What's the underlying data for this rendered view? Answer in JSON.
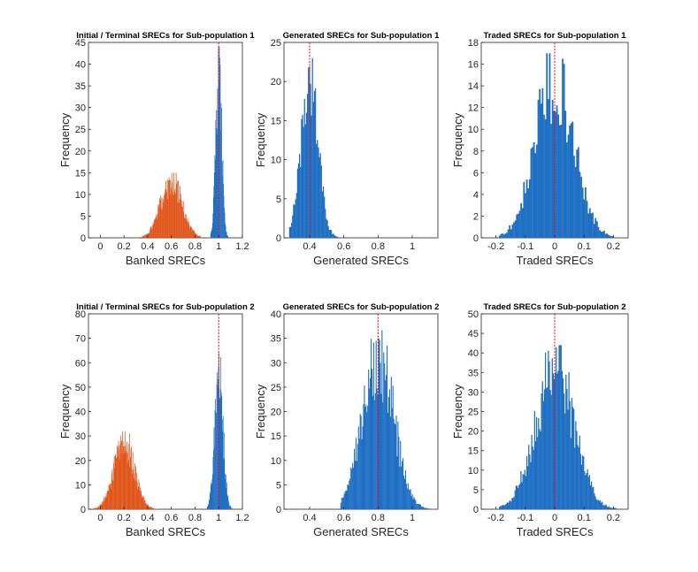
{
  "colors": {
    "blue": "#1f6fc4",
    "orange": "#e0561a",
    "ref_line": "#ff0000"
  },
  "chart_data": [
    {
      "type": "histogram",
      "title": "Initial / Terminal SRECs for Sub-population 1",
      "xlabel": "Banked SRECs",
      "ylabel": "Frequency",
      "xlim": [
        -0.1,
        1.2
      ],
      "ylim": [
        0,
        45
      ],
      "xticks": [
        0,
        0.2,
        0.4,
        0.6,
        0.8,
        1,
        1.2
      ],
      "xtick_labels": [
        "0",
        "0.2",
        "0.4",
        "0.6",
        "0.8",
        "1",
        "1.2"
      ],
      "yticks": [
        0,
        5,
        10,
        15,
        20,
        25,
        30,
        35,
        40,
        45
      ],
      "series": [
        {
          "name": "Initial",
          "color": "orange",
          "distribution": "normal",
          "mean": 0.6,
          "sd": 0.09,
          "range": [
            0.25,
            0.85
          ],
          "peak": 15,
          "bins": 130
        },
        {
          "name": "Terminal",
          "color": "blue",
          "distribution": "normal",
          "mean": 1.0,
          "sd": 0.025,
          "range": [
            0.93,
            1.14
          ],
          "peak": 44,
          "bins": 55
        }
      ],
      "reference_line": 1.0
    },
    {
      "type": "histogram",
      "title": "Generated SRECs for Sub-population 1",
      "xlabel": "Generated SRECs",
      "ylabel": "Frequency",
      "xlim": [
        0.25,
        1.15
      ],
      "ylim": [
        0,
        25
      ],
      "xticks": [
        0.4,
        0.6,
        0.8,
        1
      ],
      "xtick_labels": [
        "0.4",
        "0.6",
        "0.8",
        "1"
      ],
      "yticks": [
        0,
        5,
        10,
        15,
        20,
        25
      ],
      "series": [
        {
          "name": "Generated",
          "color": "blue",
          "distribution": "normal",
          "mean": 0.4,
          "sd": 0.05,
          "range": [
            0.28,
            0.57
          ],
          "peak": 23,
          "bins": 50
        }
      ],
      "reference_line": 0.4
    },
    {
      "type": "histogram",
      "title": "Traded SRECs for Sub-population 1",
      "xlabel": "Traded SRECs",
      "ylabel": "Frequency",
      "xlim": [
        -0.25,
        0.25
      ],
      "ylim": [
        0,
        18
      ],
      "xticks": [
        -0.2,
        -0.1,
        0,
        0.1,
        0.2
      ],
      "xtick_labels": [
        "-0.2",
        "-0.1",
        "0",
        "0.1",
        "0.2"
      ],
      "yticks": [
        0,
        2,
        4,
        6,
        8,
        10,
        12,
        14,
        16,
        18
      ],
      "series": [
        {
          "name": "Traded",
          "color": "blue",
          "distribution": "normal",
          "mean": 0.0,
          "sd": 0.065,
          "range": [
            -0.19,
            0.2
          ],
          "peak": 17,
          "bins": 80
        }
      ],
      "reference_line": 0.0
    },
    {
      "type": "histogram",
      "title": "Initial / Terminal SRECs for Sub-population 2",
      "xlabel": "Banked SRECs",
      "ylabel": "Frequency",
      "xlim": [
        -0.1,
        1.2
      ],
      "ylim": [
        0,
        80
      ],
      "xticks": [
        0,
        0.2,
        0.4,
        0.6,
        0.8,
        1,
        1.2
      ],
      "xtick_labels": [
        "0",
        "0.2",
        "0.4",
        "0.6",
        "0.8",
        "1",
        "1.2"
      ],
      "yticks": [
        0,
        10,
        20,
        30,
        40,
        50,
        60,
        70,
        80
      ],
      "series": [
        {
          "name": "Initial",
          "color": "orange",
          "distribution": "normal",
          "mean": 0.2,
          "sd": 0.085,
          "range": [
            -0.08,
            0.5
          ],
          "peak": 32,
          "bins": 140
        },
        {
          "name": "Terminal",
          "color": "blue",
          "distribution": "normal",
          "mean": 1.0,
          "sd": 0.035,
          "range": [
            0.9,
            1.15
          ],
          "peak": 64,
          "bins": 65
        }
      ],
      "reference_line": 1.0
    },
    {
      "type": "histogram",
      "title": "Generated SRECs for Sub-population 2",
      "xlabel": "Generated SRECs",
      "ylabel": "Frequency",
      "xlim": [
        0.25,
        1.15
      ],
      "ylim": [
        0,
        40
      ],
      "xticks": [
        0.4,
        0.6,
        0.8,
        1
      ],
      "xtick_labels": [
        "0.4",
        "0.6",
        "0.8",
        "1"
      ],
      "yticks": [
        0,
        5,
        10,
        15,
        20,
        25,
        30,
        35,
        40
      ],
      "series": [
        {
          "name": "Generated",
          "color": "blue",
          "distribution": "normal",
          "mean": 0.8,
          "sd": 0.09,
          "range": [
            0.58,
            1.12
          ],
          "peak": 37,
          "bins": 110
        }
      ],
      "reference_line": 0.8
    },
    {
      "type": "histogram",
      "title": "Traded SRECs for Sub-population 2",
      "xlabel": "Traded SRECs",
      "ylabel": "Frequency",
      "xlim": [
        -0.25,
        0.25
      ],
      "ylim": [
        0,
        50
      ],
      "xticks": [
        -0.2,
        -0.1,
        0,
        0.1,
        0.2
      ],
      "xtick_labels": [
        "-0.2",
        "-0.1",
        "0",
        "0.1",
        "0.2"
      ],
      "yticks": [
        0,
        5,
        10,
        15,
        20,
        25,
        30,
        35,
        40,
        45,
        50
      ],
      "series": [
        {
          "name": "Traded",
          "color": "blue",
          "distribution": "normal",
          "mean": 0.0,
          "sd": 0.065,
          "range": [
            -0.19,
            0.21
          ],
          "peak": 42,
          "bins": 120
        }
      ],
      "reference_line": 0.0
    }
  ]
}
